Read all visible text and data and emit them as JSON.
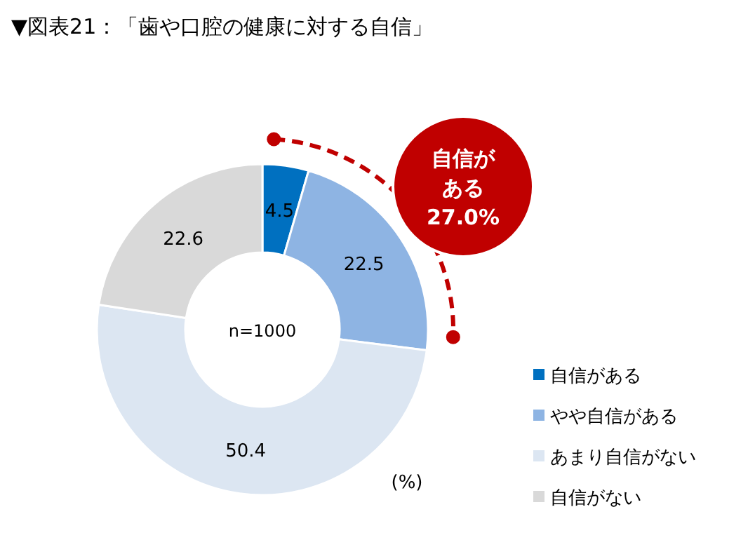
{
  "chart_data": {
    "type": "donut",
    "title": "▼図表21：「歯や口腔の健康に対する自信」",
    "categories": [
      "自信がある",
      "やや自信がある",
      "あまり自信がない",
      "自信がない"
    ],
    "values": [
      4.5,
      22.5,
      50.4,
      22.6
    ],
    "colors": [
      "#0070c0",
      "#8eb4e3",
      "#dce6f2",
      "#d9d9d9"
    ],
    "data_labels": true,
    "legend": "bottom right",
    "annotations": [
      "n=1000",
      "(%)",
      "自信がある",
      "27.0%"
    ]
  }
}
